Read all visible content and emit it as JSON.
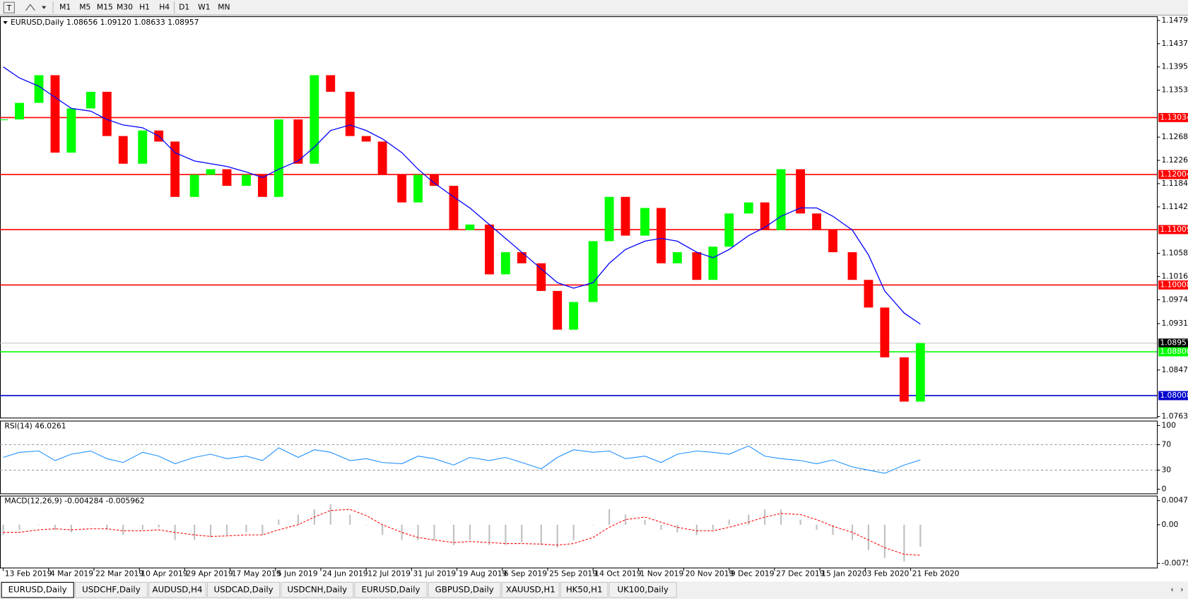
{
  "toolbar": {
    "timeframes": [
      "M1",
      "M5",
      "M15",
      "M30",
      "H1",
      "H4",
      "D1",
      "W1",
      "MN"
    ]
  },
  "tabs": [
    "EURUSD,Daily",
    "USDCHF,Daily",
    "AUDUSD,H4",
    "USDCAD,Daily",
    "USDCNH,Daily",
    "EURUSD,Daily",
    "GBPUSD,Daily",
    "XAUUSD,H1",
    "HK50,H1",
    "UK100,Daily"
  ],
  "chart_data": {
    "type": "candlestick",
    "header": "EURUSD,Daily  1.08656 1.09120 1.08633 1.08957",
    "up_color": "#00ff00",
    "down_color": "#ff0000",
    "x": [
      0,
      5,
      11,
      16,
      21,
      27,
      32,
      37,
      43,
      48,
      53,
      59,
      64,
      69,
      75,
      80,
      85,
      91,
      96,
      101,
      107,
      112,
      117,
      123,
      128,
      133,
      139,
      144,
      150,
      155,
      160,
      166,
      171,
      176,
      182,
      187,
      192,
      198,
      203,
      208,
      214,
      219,
      224,
      230,
      235,
      240,
      246,
      251,
      256,
      262,
      267,
      272,
      278,
      283
    ],
    "close": [
      1.13,
      1.133,
      1.138,
      1.124,
      1.132,
      1.135,
      1.127,
      1.122,
      1.128,
      1.126,
      1.116,
      1.12,
      1.121,
      1.118,
      1.12,
      1.116,
      1.13,
      1.122,
      1.138,
      1.135,
      1.127,
      1.126,
      1.12,
      1.115,
      1.12,
      1.118,
      1.11,
      1.111,
      1.102,
      1.106,
      1.104,
      1.099,
      1.092,
      1.097,
      1.108,
      1.116,
      1.109,
      1.114,
      1.104,
      1.106,
      1.101,
      1.107,
      1.113,
      1.115,
      1.11,
      1.121,
      1.113,
      1.11,
      1.106,
      1.101,
      1.096,
      1.087,
      1.079,
      1.08957
    ],
    "series": [
      {
        "color": "#0000ff",
        "values": [
          1.1395,
          1.1375,
          1.136,
          1.134,
          1.132,
          1.1315,
          1.13,
          1.129,
          1.1285,
          1.127,
          1.124,
          1.1225,
          1.122,
          1.1215,
          1.1205,
          1.1195,
          1.121,
          1.1225,
          1.125,
          1.128,
          1.129,
          1.128,
          1.1265,
          1.124,
          1.121,
          1.1185,
          1.116,
          1.114,
          1.111,
          1.1085,
          1.106,
          1.103,
          1.1005,
          1.0995,
          1.1005,
          1.104,
          1.1065,
          1.108,
          1.1085,
          1.108,
          1.106,
          1.105,
          1.1065,
          1.109,
          1.1105,
          1.1125,
          1.114,
          1.114,
          1.1125,
          1.11,
          1.1055,
          1.099,
          1.095,
          1.093
        ]
      }
    ],
    "xlim": [
      -1,
      356
    ],
    "xticks": [
      {
        "value": 0,
        "label": "13 Feb 2019"
      },
      {
        "value": 14,
        "label": "4 Mar 2019"
      },
      {
        "value": 28,
        "label": "22 Mar 2019"
      },
      {
        "value": 42,
        "label": "10 Apr 2019"
      },
      {
        "value": 56,
        "label": "29 Apr 2019"
      },
      {
        "value": 70,
        "label": "17 May 2019"
      },
      {
        "value": 84,
        "label": "5 Jun 2019"
      },
      {
        "value": 98,
        "label": "24 Jun 2019"
      },
      {
        "value": 112,
        "label": "12 Jul 2019"
      },
      {
        "value": 126,
        "label": "31 Jul 2019"
      },
      {
        "value": 140,
        "label": "19 Aug 2019"
      },
      {
        "value": 154,
        "label": "6 Sep 2019"
      },
      {
        "value": 168,
        "label": "25 Sep 2019"
      },
      {
        "value": 182,
        "label": "14 Oct 2019"
      },
      {
        "value": 196,
        "label": "1 Nov 2019"
      },
      {
        "value": 210,
        "label": "20 Nov 2019"
      },
      {
        "value": 224,
        "label": "9 Dec 2019"
      },
      {
        "value": 238,
        "label": "27 Dec 2019"
      },
      {
        "value": 252,
        "label": "15 Jan 2020"
      },
      {
        "value": 266,
        "label": "3 Feb 2020"
      },
      {
        "value": 280,
        "label": "21 Feb 2020"
      }
    ],
    "ylim": [
      1.07603,
      1.14858
    ],
    "yticks": [
      {
        "value": 1.1479,
        "label": "1.14790"
      },
      {
        "value": 1.1437,
        "label": "1.14370"
      },
      {
        "value": 1.1395,
        "label": "1.13950"
      },
      {
        "value": 1.1353,
        "label": "1.13530"
      },
      {
        "value": 1.1268,
        "label": "1.12680"
      },
      {
        "value": 1.1226,
        "label": "1.12260"
      },
      {
        "value": 1.1184,
        "label": "1.11840"
      },
      {
        "value": 1.1142,
        "label": "1.11420"
      },
      {
        "value": 1.1058,
        "label": "1.10580"
      },
      {
        "value": 1.1016,
        "label": "1.10160"
      },
      {
        "value": 1.0974,
        "label": "1.09740"
      },
      {
        "value": 1.0931,
        "label": "1.09310"
      },
      {
        "value": 1.0847,
        "label": "1.08470"
      },
      {
        "value": 1.0763,
        "label": "1.07630"
      }
    ],
    "hlines": [
      {
        "value": 1.13034,
        "color": "#ff0000"
      },
      {
        "value": 1.12004,
        "color": "#ff0000"
      },
      {
        "value": 1.11009,
        "color": "#ff0000"
      },
      {
        "value": 1.10008,
        "color": "#ff0000"
      },
      {
        "value": 1.08957,
        "color": "#c0c0c0"
      },
      {
        "value": 1.088,
        "label": "1.08800",
        "color": "#00ff00"
      },
      {
        "value": 1.08008,
        "color": "#0000cd"
      }
    ],
    "rsi": {
      "title": "RSI(14) 46.0261",
      "color": "#1e90ff",
      "values": [
        50,
        58,
        60,
        45,
        55,
        60,
        48,
        42,
        58,
        52,
        40,
        50,
        55,
        48,
        52,
        45,
        65,
        50,
        62,
        58,
        45,
        48,
        42,
        40,
        52,
        48,
        38,
        50,
        45,
        50,
        42,
        32,
        50,
        62,
        58,
        60,
        48,
        52,
        42,
        55,
        60,
        58,
        55,
        68,
        52,
        48,
        45,
        40,
        46,
        35,
        30,
        25,
        38,
        46
      ],
      "ylim": [
        -7.1,
        107.1
      ],
      "yticks": [
        100,
        70,
        30,
        0
      ]
    },
    "macd": {
      "title": "MACD(12,26,9) -0.004284 -0.005962",
      "hist_color": "#c0c0c0",
      "signal_color": "#ff0000",
      "histogram": [
        -0.002,
        -0.001,
        0,
        -0.001,
        -0.0015,
        0,
        -0.001,
        -0.002,
        -0.001,
        -0.0005,
        -0.003,
        -0.003,
        -0.0025,
        -0.002,
        -0.0015,
        -0.002,
        0.001,
        0.002,
        0.003,
        0.004,
        0.002,
        0,
        -0.002,
        -0.003,
        -0.003,
        -0.003,
        -0.004,
        -0.003,
        -0.004,
        -0.004,
        -0.0035,
        -0.004,
        -0.0045,
        -0.003,
        0,
        0.003,
        0.002,
        0.001,
        -0.001,
        -0.0015,
        -0.002,
        -0.001,
        0.001,
        0.002,
        0.003,
        0.003,
        0.001,
        -0.001,
        -0.002,
        -0.003,
        -0.005,
        -0.0065,
        -0.0072,
        -0.0043
      ],
      "signal": [
        -0.0015,
        -0.0015,
        -0.001,
        -0.0008,
        -0.001,
        -0.0008,
        -0.0008,
        -0.0012,
        -0.0012,
        -0.001,
        -0.0015,
        -0.002,
        -0.0023,
        -0.0022,
        -0.002,
        -0.002,
        -0.001,
        0,
        0.0015,
        0.0028,
        0.003,
        0.0018,
        0,
        -0.0015,
        -0.0025,
        -0.003,
        -0.0035,
        -0.0033,
        -0.0035,
        -0.0037,
        -0.0037,
        -0.0038,
        -0.004,
        -0.0037,
        -0.0025,
        -0.0005,
        0.001,
        0.0015,
        0.0005,
        -0.0005,
        -0.0012,
        -0.0012,
        -0.0005,
        0.0005,
        0.0015,
        0.0022,
        0.002,
        0.001,
        -0.0003,
        -0.0015,
        -0.003,
        -0.0045,
        -0.0058,
        -0.006
      ],
      "ylim": [
        -0.00848,
        0.00563
      ],
      "yticks": [
        0.004738,
        {
          "value": 0,
          "label": "0.00"
        },
        -0.007584
      ]
    }
  }
}
